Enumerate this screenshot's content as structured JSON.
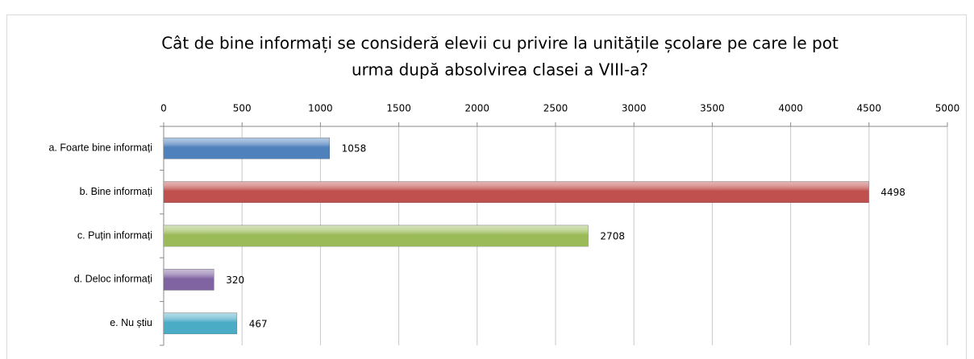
{
  "chart_data": {
    "type": "bar",
    "orientation": "horizontal",
    "title": [
      "Cât de bine informați se consideră elevii cu privire la unitățile școlare pe care le pot",
      "urma după absolvirea clasei a VIII-a?"
    ],
    "categories": [
      "a. Foarte bine informați",
      "b. Bine informați",
      "c. Puțin informați",
      "d. Deloc informați",
      "e. Nu știu"
    ],
    "values": [
      1058,
      4498,
      2708,
      320,
      467
    ],
    "colors": [
      "#4f81bd",
      "#c0504d",
      "#9bbb59",
      "#8064a2",
      "#4bacc6"
    ],
    "xlim": [
      0,
      5000
    ],
    "xticks": [
      0,
      500,
      1000,
      1500,
      2000,
      2500,
      3000,
      3500,
      4000,
      4500,
      5000
    ],
    "grid": true
  }
}
